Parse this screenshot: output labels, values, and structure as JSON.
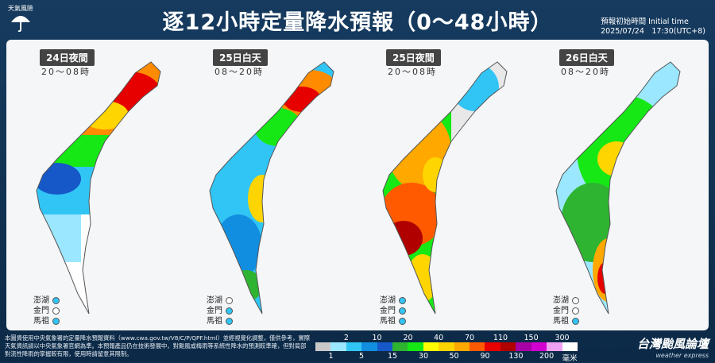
{
  "logo": {
    "caption": "天氣風險",
    "icon": "umbrella-icon"
  },
  "title": "逐12小時定量降水預報（0～48小時）",
  "init_time": {
    "label": "預報初始時間 Initial time",
    "value": "2025/07/24　17:30(UTC+8)"
  },
  "panels": [
    {
      "date_label": "24日夜間",
      "time_range": "20～08時",
      "islands": [
        {
          "name": "澎湖",
          "intensity": "light-blue"
        },
        {
          "name": "金門",
          "intensity": "none"
        },
        {
          "name": "馬祖",
          "intensity": "light-blue"
        }
      ]
    },
    {
      "date_label": "25日白天",
      "time_range": "08～20時",
      "islands": [
        {
          "name": "澎湖",
          "intensity": "none"
        },
        {
          "name": "金門",
          "intensity": "light-blue"
        },
        {
          "name": "馬祖",
          "intensity": "light-blue"
        }
      ]
    },
    {
      "date_label": "25日夜間",
      "time_range": "20～08時",
      "islands": [
        {
          "name": "澎湖",
          "intensity": "light-blue"
        },
        {
          "name": "金門",
          "intensity": "light-blue"
        },
        {
          "name": "馬祖",
          "intensity": "light-blue"
        }
      ]
    },
    {
      "date_label": "26日白天",
      "time_range": "08～20時",
      "islands": [
        {
          "name": "澎湖",
          "intensity": "none"
        },
        {
          "name": "金門",
          "intensity": "none"
        },
        {
          "name": "馬祖",
          "intensity": "light-blue"
        }
      ]
    }
  ],
  "disclaimer": "本圖資使用中央氣象署的定量降水預報資料（www.cwa.gov.tw/V8/C/P/QPF.html）並經視覺化調整，僅供參考，實際天氣資訊請以中央氣象署官網為準。本預報產品仍在技術發展中，對颱風或梅雨等系統性降水的預測較準確，但對局部對流性降雨的掌握較有限，使用時請留意其限制。",
  "scale": {
    "top_labels": [
      "2",
      "10",
      "20",
      "40",
      "70",
      "110",
      "150",
      "300"
    ],
    "bottom_labels": [
      "1",
      "5",
      "15",
      "30",
      "50",
      "90",
      "130",
      "200",
      "毫米"
    ],
    "colors": [
      "#c9c9c9",
      "#9be7ff",
      "#31c5f6",
      "#128ee0",
      "#1758c9",
      "#2fb432",
      "#16e816",
      "#ffff00",
      "#ffd500",
      "#ffa800",
      "#ff5a00",
      "#e60000",
      "#b00000",
      "#a600a6",
      "#d100d1",
      "#f0a0f0",
      "#ffffff"
    ]
  },
  "brand": {
    "name": "台灣颱風論壇",
    "tagline": "weather express"
  }
}
